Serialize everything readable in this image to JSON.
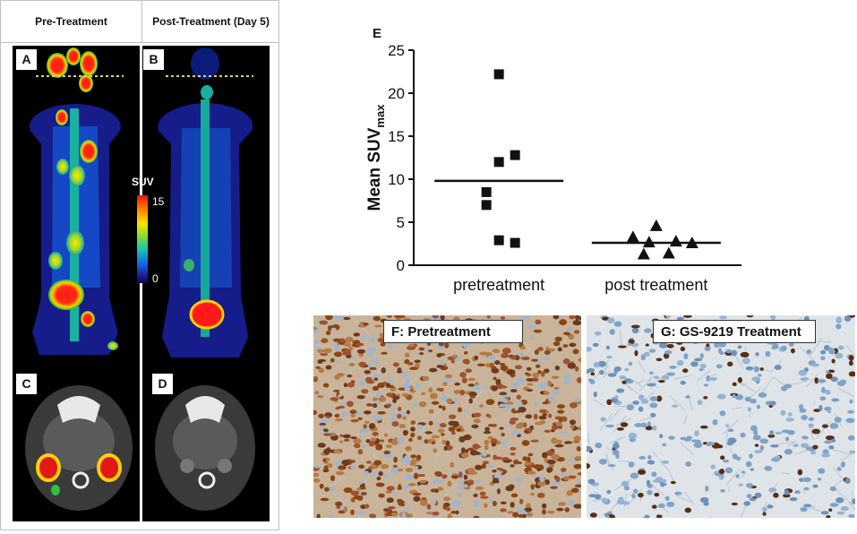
{
  "imaging": {
    "header_pre": "Pre-Treatment",
    "header_post": "Post-Treatment (Day 5)",
    "label_a": "A",
    "label_b": "B",
    "label_c": "C",
    "label_d": "D",
    "scale": {
      "title": "SUV",
      "max": "15",
      "min": "0"
    }
  },
  "histology": {
    "label_f": "F: Pretreatment",
    "label_g": "G: GS-9219 Treatment"
  },
  "chart_data": {
    "type": "scatter",
    "panel_label": "E",
    "ylabel": "Mean SUV",
    "ylabel_subscript": "max",
    "categories": [
      "pretreatment",
      "post treatment"
    ],
    "ylim": [
      0,
      25
    ],
    "yticks": [
      "0",
      "5",
      "10",
      "15",
      "20",
      "25"
    ],
    "series": [
      {
        "category": "pretreatment",
        "marker": "square",
        "values": [
          22.2,
          12.8,
          12.0,
          8.5,
          7.0,
          2.9,
          2.6
        ],
        "mean": 9.8
      },
      {
        "category": "post treatment",
        "marker": "triangle",
        "values": [
          4.6,
          3.3,
          2.8,
          2.7,
          2.6,
          1.4,
          1.3
        ],
        "mean": 2.6
      }
    ]
  }
}
